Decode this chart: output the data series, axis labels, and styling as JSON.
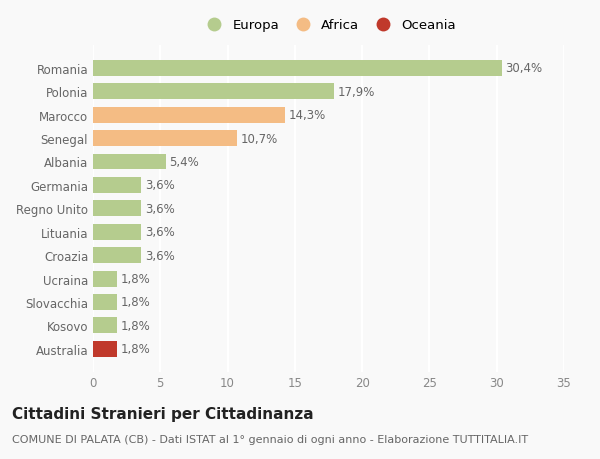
{
  "categories": [
    "Romania",
    "Polonia",
    "Marocco",
    "Senegal",
    "Albania",
    "Germania",
    "Regno Unito",
    "Lituania",
    "Croazia",
    "Ucraina",
    "Slovacchia",
    "Kosovo",
    "Australia"
  ],
  "values": [
    30.4,
    17.9,
    14.3,
    10.7,
    5.4,
    3.6,
    3.6,
    3.6,
    3.6,
    1.8,
    1.8,
    1.8,
    1.8
  ],
  "continents": [
    "Europa",
    "Europa",
    "Africa",
    "Africa",
    "Europa",
    "Europa",
    "Europa",
    "Europa",
    "Europa",
    "Europa",
    "Europa",
    "Europa",
    "Oceania"
  ],
  "colors": {
    "Europa": "#b5cc8e",
    "Africa": "#f4bc84",
    "Oceania": "#c0392b"
  },
  "xlim": [
    0,
    35
  ],
  "xticks": [
    0,
    5,
    10,
    15,
    20,
    25,
    30,
    35
  ],
  "title": "Cittadini Stranieri per Cittadinanza",
  "subtitle": "COMUNE DI PALATA (CB) - Dati ISTAT al 1° gennaio di ogni anno - Elaborazione TUTTITALIA.IT",
  "background_color": "#f9f9f9",
  "grid_color": "#ffffff",
  "bar_height": 0.68,
  "label_fontsize": 8.5,
  "title_fontsize": 11,
  "subtitle_fontsize": 8,
  "tick_fontsize": 8.5,
  "legend_order": [
    "Europa",
    "Africa",
    "Oceania"
  ]
}
